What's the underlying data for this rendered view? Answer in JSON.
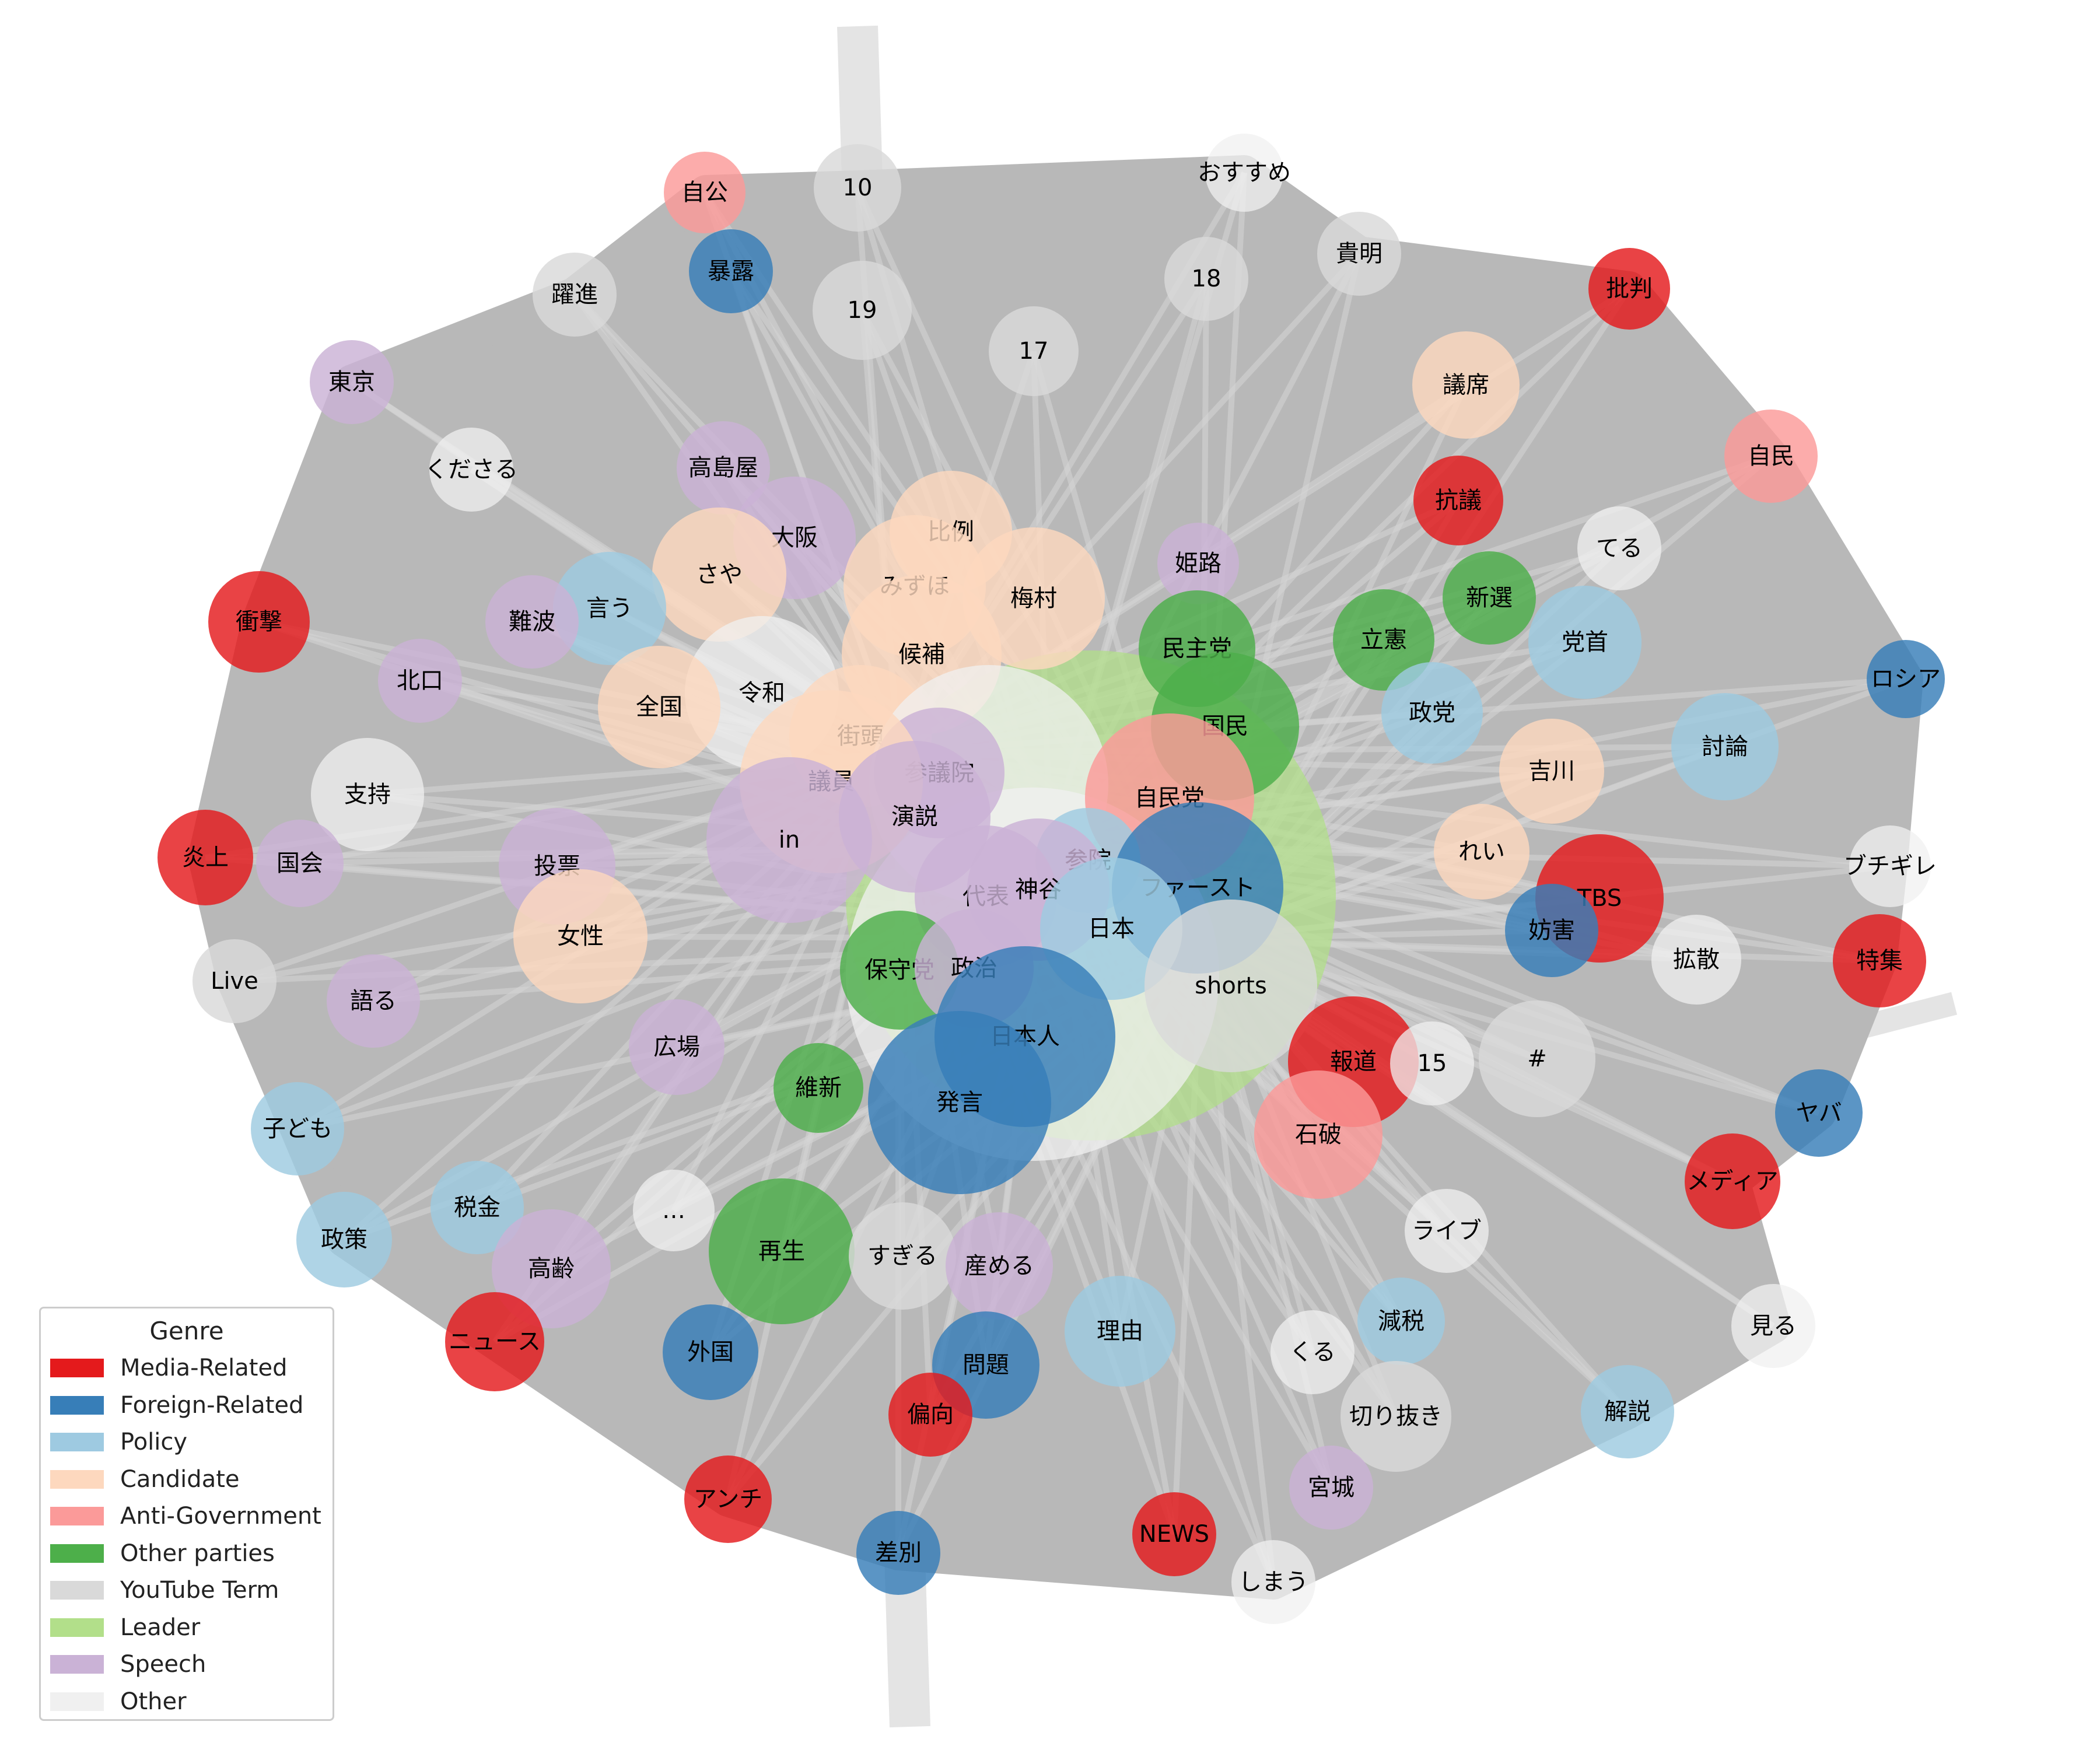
{
  "colors": {
    "Media-Related": "#e41a1c",
    "Foreign-Related": "#377eb8",
    "Policy": "#9ecae1",
    "Candidate": "#fdd8be",
    "Anti-Government": "#fb9a99",
    "Other parties": "#4daf4a",
    "YouTube Term": "#d9d9d9",
    "Leader": "#b2df8a",
    "Speech": "#cab2d6",
    "Other": "#f0f0f0"
  },
  "legend": {
    "title": "Genre",
    "items": [
      "Media-Related",
      "Foreign-Related",
      "Policy",
      "Candidate",
      "Anti-Government",
      "Other parties",
      "YouTube Term",
      "Leader",
      "Speech",
      "Other"
    ]
  },
  "nodes": [
    {
      "label": "",
      "genre": "Leader"
    },
    {
      "label": "",
      "genre": "Other"
    },
    {
      "label": "自公",
      "genre": "Anti-Government"
    },
    {
      "label": "10",
      "genre": "YouTube Term"
    },
    {
      "label": "おすすめ",
      "genre": "Other"
    },
    {
      "label": "暴露",
      "genre": "Foreign-Related"
    },
    {
      "label": "貴明",
      "genre": "YouTube Term"
    },
    {
      "label": "18",
      "genre": "YouTube Term"
    },
    {
      "label": "19",
      "genre": "YouTube Term"
    },
    {
      "label": "躍進",
      "genre": "YouTube Term"
    },
    {
      "label": "批判",
      "genre": "Media-Related"
    },
    {
      "label": "17",
      "genre": "YouTube Term"
    },
    {
      "label": "東京",
      "genre": "Speech"
    },
    {
      "label": "議席",
      "genre": "Candidate"
    },
    {
      "label": "自民",
      "genre": "Anti-Government"
    },
    {
      "label": "くださる",
      "genre": "Other"
    },
    {
      "label": "高島屋",
      "genre": "Speech"
    },
    {
      "label": "抗議",
      "genre": "Media-Related"
    },
    {
      "label": "大阪",
      "genre": "Speech"
    },
    {
      "label": "比例",
      "genre": "Candidate"
    },
    {
      "label": "てる",
      "genre": "Other"
    },
    {
      "label": "さや",
      "genre": "Candidate"
    },
    {
      "label": "姫路",
      "genre": "Speech"
    },
    {
      "label": "梅村",
      "genre": "Candidate"
    },
    {
      "label": "みずほ",
      "genre": "Candidate"
    },
    {
      "label": "新選",
      "genre": "Other parties"
    },
    {
      "label": "衝撃",
      "genre": "Media-Related"
    },
    {
      "label": "言う",
      "genre": "Policy"
    },
    {
      "label": "難波",
      "genre": "Speech"
    },
    {
      "label": "立憲",
      "genre": "Other parties"
    },
    {
      "label": "党首",
      "genre": "Policy"
    },
    {
      "label": "民主党",
      "genre": "Other parties"
    },
    {
      "label": "候補",
      "genre": "Candidate"
    },
    {
      "label": "ロシア",
      "genre": "Foreign-Related"
    },
    {
      "label": "北口",
      "genre": "Speech"
    },
    {
      "label": "令和",
      "genre": "Other"
    },
    {
      "label": "全国",
      "genre": "Candidate"
    },
    {
      "label": "政党",
      "genre": "Policy"
    },
    {
      "label": "国民",
      "genre": "Other parties"
    },
    {
      "label": "街頭",
      "genre": "Candidate"
    },
    {
      "label": "討論",
      "genre": "Policy"
    },
    {
      "label": "吉川",
      "genre": "Candidate"
    },
    {
      "label": "支持",
      "genre": "Other"
    },
    {
      "label": "",
      "genre": "Other"
    },
    {
      "label": "参議院",
      "genre": "Speech"
    },
    {
      "label": "議員",
      "genre": "Candidate"
    },
    {
      "label": "自民党",
      "genre": "Anti-Government"
    },
    {
      "label": "炎上",
      "genre": "Media-Related"
    },
    {
      "label": "国会",
      "genre": "Speech"
    },
    {
      "label": "ブチギレ",
      "genre": "Other"
    },
    {
      "label": "演説",
      "genre": "Speech"
    },
    {
      "label": "in",
      "genre": "Speech"
    },
    {
      "label": "投票",
      "genre": "Speech"
    },
    {
      "label": "れい",
      "genre": "Candidate"
    },
    {
      "label": "参院",
      "genre": "Policy"
    },
    {
      "label": "ファースト",
      "genre": "Foreign-Related"
    },
    {
      "label": "TBS",
      "genre": "Media-Related"
    },
    {
      "label": "代表",
      "genre": "Speech"
    },
    {
      "label": "神谷",
      "genre": "Speech"
    },
    {
      "label": "妨害",
      "genre": "Foreign-Related"
    },
    {
      "label": "女性",
      "genre": "Candidate"
    },
    {
      "label": "日本",
      "genre": "Policy"
    },
    {
      "label": "拡散",
      "genre": "Other"
    },
    {
      "label": "特集",
      "genre": "Media-Related"
    },
    {
      "label": "Live",
      "genre": "YouTube Term"
    },
    {
      "label": "保守党",
      "genre": "Other parties"
    },
    {
      "label": "政治",
      "genre": "Speech"
    },
    {
      "label": "shorts",
      "genre": "YouTube Term"
    },
    {
      "label": "語る",
      "genre": "Speech"
    },
    {
      "label": "日本人",
      "genre": "Foreign-Related"
    },
    {
      "label": "報道",
      "genre": "Media-Related"
    },
    {
      "label": "15",
      "genre": "Other"
    },
    {
      "label": "#",
      "genre": "YouTube Term"
    },
    {
      "label": "広場",
      "genre": "Speech"
    },
    {
      "label": "維新",
      "genre": "Other parties"
    },
    {
      "label": "発言",
      "genre": "Foreign-Related"
    },
    {
      "label": "ヤバ",
      "genre": "Foreign-Related"
    },
    {
      "label": "子ども",
      "genre": "Policy"
    },
    {
      "label": "石破",
      "genre": "Anti-Government"
    },
    {
      "label": "メディア",
      "genre": "Media-Related"
    },
    {
      "label": "税金",
      "genre": "Policy"
    },
    {
      "label": "…",
      "genre": "Other"
    },
    {
      "label": "ライブ",
      "genre": "Other"
    },
    {
      "label": "政策",
      "genre": "Policy"
    },
    {
      "label": "再生",
      "genre": "Other parties"
    },
    {
      "label": "すぎる",
      "genre": "YouTube Term"
    },
    {
      "label": "高齢",
      "genre": "Speech"
    },
    {
      "label": "産める",
      "genre": "Speech"
    },
    {
      "label": "理由",
      "genre": "Policy"
    },
    {
      "label": "ニュース",
      "genre": "Media-Related"
    },
    {
      "label": "外国",
      "genre": "Foreign-Related"
    },
    {
      "label": "減税",
      "genre": "Policy"
    },
    {
      "label": "見る",
      "genre": "Other"
    },
    {
      "label": "くる",
      "genre": "Other"
    },
    {
      "label": "問題",
      "genre": "Foreign-Related"
    },
    {
      "label": "切り抜き",
      "genre": "YouTube Term"
    },
    {
      "label": "解説",
      "genre": "Policy"
    },
    {
      "label": "偏向",
      "genre": "Media-Related"
    },
    {
      "label": "アンチ",
      "genre": "Media-Related"
    },
    {
      "label": "宮城",
      "genre": "Speech"
    },
    {
      "label": "NEWS",
      "genre": "Media-Related"
    },
    {
      "label": "差別",
      "genre": "Foreign-Related"
    },
    {
      "label": "しまう",
      "genre": "Other"
    }
  ]
}
